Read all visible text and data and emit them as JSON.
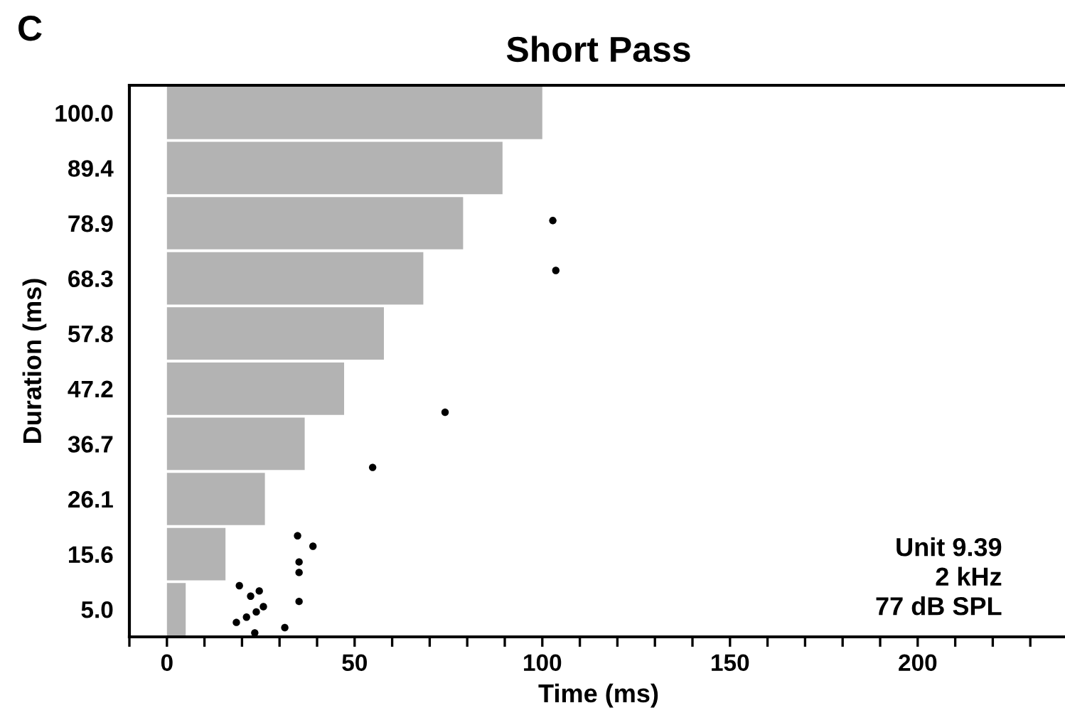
{
  "chart_data": {
    "type": "bar",
    "orientation": "horizontal",
    "title": "Short Pass",
    "xlabel": "Time (ms)",
    "ylabel": "Duration (ms)",
    "categories": [
      "100.0",
      "89.4",
      "78.9",
      "68.3",
      "57.8",
      "47.2",
      "36.7",
      "26.1",
      "15.6",
      "5.0"
    ],
    "series": [
      {
        "color": "#b3b3b3",
        "values": [
          100.0,
          89.4,
          78.9,
          68.3,
          57.8,
          47.2,
          36.7,
          26.1,
          15.6,
          5.0
        ]
      },
      {
        "type": "scatter",
        "color": "#000000",
        "values": [
          null,
          null,
          null,
          null,
          null,
          null,
          null,
          null,
          null,
          19.3
        ]
      },
      {
        "type": "scatter",
        "color": "#000000",
        "values": [
          null,
          null,
          null,
          null,
          null,
          null,
          null,
          null,
          34.8,
          24.6
        ]
      },
      {
        "type": "scatter",
        "color": "#000000",
        "values": [
          null,
          null,
          null,
          null,
          null,
          null,
          null,
          null,
          null,
          22.3
        ]
      },
      {
        "type": "scatter",
        "color": "#000000",
        "values": [
          null,
          null,
          null,
          103.6,
          null,
          null,
          null,
          null,
          38.9,
          35.2
        ]
      },
      {
        "type": "scatter",
        "color": "#000000",
        "values": [
          null,
          null,
          102.8,
          null,
          null,
          null,
          null,
          null,
          null,
          25.7
        ]
      },
      {
        "type": "scatter",
        "color": "#000000",
        "values": [
          null,
          null,
          null,
          null,
          null,
          null,
          null,
          null,
          null,
          23.8
        ]
      },
      {
        "type": "scatter",
        "color": "#000000",
        "values": [
          null,
          null,
          null,
          null,
          null,
          null,
          null,
          null,
          35.2,
          21.2
        ]
      },
      {
        "type": "scatter",
        "color": "#000000",
        "values": [
          null,
          null,
          null,
          null,
          null,
          null,
          null,
          null,
          null,
          18.5
        ]
      },
      {
        "type": "scatter",
        "color": "#000000",
        "values": [
          null,
          null,
          null,
          null,
          null,
          null,
          null,
          null,
          35.2,
          31.4
        ]
      },
      {
        "type": "scatter",
        "color": "#000000",
        "values": [
          null,
          null,
          null,
          null,
          null,
          74.1,
          54.8,
          null,
          null,
          23.4
        ]
      }
    ],
    "xlim": [
      -10,
      240
    ],
    "xticks": [
      0,
      50,
      100,
      150,
      200
    ],
    "annotations": [
      "C",
      "Unit 9.39\n2 kHz\n77 dB SPL"
    ],
    "marker": "circle",
    "grid": false,
    "legend": false
  }
}
